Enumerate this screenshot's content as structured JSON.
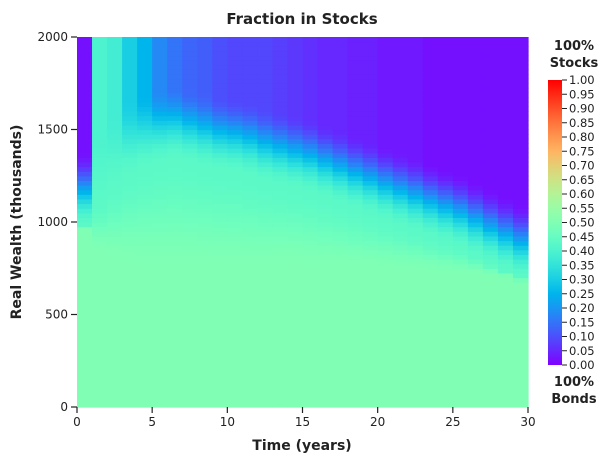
{
  "chart_data": {
    "type": "heatmap",
    "title": "Fraction in Stocks",
    "xlabel": "Time (years)",
    "ylabel": "Real Wealth (thousands)",
    "xlim": [
      0,
      30
    ],
    "ylim": [
      0,
      2000
    ],
    "x_ticks": [
      0,
      5,
      10,
      15,
      20,
      25,
      30
    ],
    "y_ticks": [
      0,
      500,
      1000,
      1500,
      2000
    ],
    "grid": false,
    "colormap": "rainbow",
    "colorbar": {
      "range": [
        0.0,
        1.0
      ],
      "ticks": [
        "0.00",
        "0.05",
        "0.10",
        "0.15",
        "0.20",
        "0.25",
        "0.30",
        "0.35",
        "0.40",
        "0.45",
        "0.50",
        "0.55",
        "0.60",
        "0.65",
        "0.70",
        "0.75",
        "0.80",
        "0.85",
        "0.90",
        "0.95",
        "1.00"
      ],
      "top_label": [
        "100%",
        "Stocks"
      ],
      "bottom_label": [
        "100%",
        "Bonds"
      ]
    },
    "base_fraction": 0.5,
    "mid_fraction": 0.43,
    "transition_profile": {
      "time": [
        0,
        1,
        2,
        3,
        4,
        5,
        6,
        7,
        8,
        9,
        10,
        11,
        12,
        13,
        14,
        15,
        16,
        17,
        18,
        19,
        20,
        21,
        22,
        23,
        24,
        25,
        26,
        27,
        28,
        29,
        30
      ],
      "lower_boundary_wealth": [
        960,
        840,
        800,
        775,
        755,
        745,
        740,
        740,
        740,
        740,
        740,
        742,
        748,
        760,
        765,
        760,
        755,
        752,
        750,
        750,
        748,
        745,
        740,
        735,
        732,
        728,
        725,
        715,
        705,
        680,
        670
      ],
      "upper_boundary_wealth": [
        980,
        1100,
        1180,
        1250,
        1290,
        1320,
        1340,
        1320,
        1300,
        1280,
        1270,
        1250,
        1220,
        1200,
        1180,
        1160,
        1130,
        1100,
        1070,
        1040,
        1010,
        980,
        950,
        920,
        890,
        860,
        820,
        780,
        740,
        700,
        680
      ],
      "top_fraction": [
        0.02,
        0.4,
        0.38,
        0.3,
        0.25,
        0.18,
        0.15,
        0.13,
        0.12,
        0.1,
        0.09,
        0.09,
        0.09,
        0.08,
        0.07,
        0.06,
        0.05,
        0.05,
        0.04,
        0.04,
        0.03,
        0.03,
        0.03,
        0.02,
        0.02,
        0.02,
        0.02,
        0.02,
        0.02,
        0.02,
        0.02
      ]
    }
  }
}
